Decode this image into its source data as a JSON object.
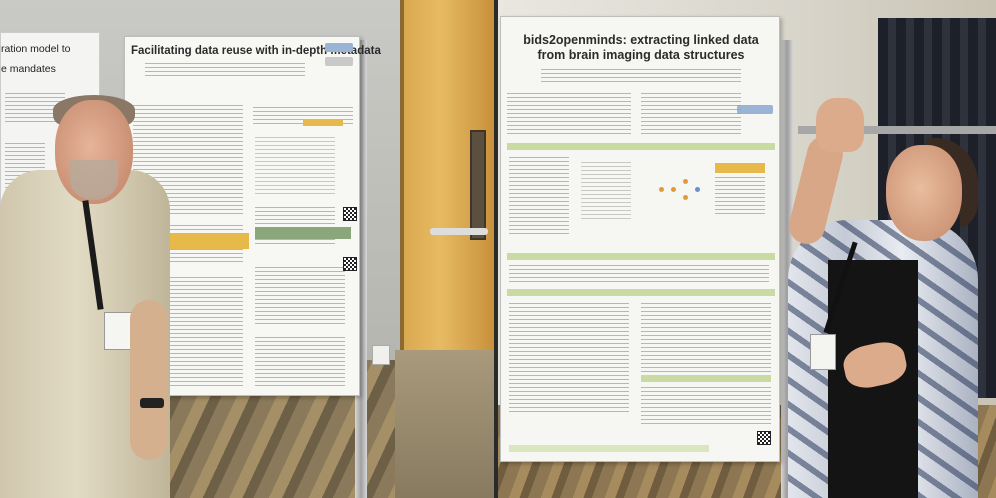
{
  "photos": {
    "left": {
      "adjacent_poster": {
        "title_fragment": "ration model to",
        "subtitle_fragment": "e mandates"
      },
      "poster": {
        "title": "Facilitating data reuse with in-depth metadata"
      }
    },
    "right": {
      "poster": {
        "title_line1": "bids2openminds: extracting linked data",
        "title_line2": "from brain imaging data structures"
      }
    }
  }
}
